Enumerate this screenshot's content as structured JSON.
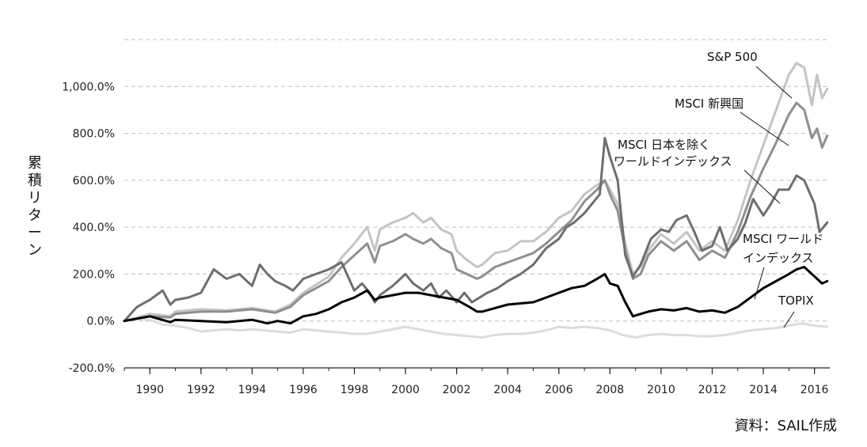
{
  "chart_data": {
    "type": "line",
    "title": "",
    "ylabel": "累積リターン",
    "xlabel": "",
    "source": "資料：SAIL作成",
    "ylim": [
      -200,
      1200
    ],
    "xlim": [
      1989,
      2016.6
    ],
    "grid": "horizontal dashed",
    "y_ticks": [
      -200,
      0,
      200,
      400,
      600,
      800,
      1000
    ],
    "y_tick_labels": [
      "-200.0%",
      "0.0%",
      "200.0%",
      "400.0%",
      "600.0%",
      "800.0%",
      "1,000.0%"
    ],
    "x_ticks": [
      1990,
      1992,
      1994,
      1996,
      1998,
      2000,
      2002,
      2004,
      2006,
      2008,
      2010,
      2012,
      2014,
      2016
    ],
    "x_tick_labels": [
      "1990",
      "1992",
      "1994",
      "1996",
      "1998",
      "2000",
      "2002",
      "2004",
      "2006",
      "2008",
      "2010",
      "2012",
      "2014",
      "2016"
    ],
    "series": [
      {
        "name": "S&P 500",
        "color": "#c4c4c4",
        "x": [
          1989,
          1990,
          1990.8,
          1991,
          1992,
          1993,
          1994,
          1994.9,
          1995.5,
          1996,
          1997,
          1997.5,
          1998,
          1998.5,
          1998.8,
          1999,
          1999.5,
          2000,
          2000.3,
          2000.7,
          2001,
          2001.4,
          2001.8,
          2002,
          2002.4,
          2002.8,
          2003,
          2003.5,
          2004,
          2004.5,
          2005,
          2005.5,
          2006,
          2006.5,
          2007,
          2007.5,
          2007.8,
          2008,
          2008.3,
          2008.6,
          2008.9,
          2009.2,
          2009.5,
          2010,
          2010.5,
          2011,
          2011.5,
          2012,
          2012.5,
          2013,
          2013.5,
          2014,
          2014.5,
          2015,
          2015.3,
          2015.6,
          2015.9,
          2016.1,
          2016.3,
          2016.5
        ],
        "y": [
          0,
          30,
          20,
          40,
          50,
          45,
          55,
          40,
          70,
          120,
          190,
          270,
          330,
          400,
          300,
          390,
          420,
          440,
          460,
          420,
          440,
          390,
          370,
          300,
          260,
          230,
          240,
          290,
          300,
          340,
          340,
          380,
          440,
          470,
          540,
          580,
          600,
          560,
          500,
          330,
          200,
          230,
          300,
          370,
          330,
          380,
          300,
          340,
          300,
          430,
          600,
          750,
          900,
          1050,
          1100,
          1080,
          920,
          1050,
          950,
          990
        ]
      },
      {
        "name": "MSCI 新興国",
        "color": "#8f8f8f",
        "x": [
          1989,
          1990,
          1990.8,
          1991,
          1992,
          1993,
          1994,
          1994.9,
          1995.5,
          1996,
          1997,
          1997.5,
          1998,
          1998.5,
          1998.8,
          1999,
          1999.5,
          2000,
          2000.3,
          2000.7,
          2001,
          2001.4,
          2001.8,
          2002,
          2002.4,
          2002.8,
          2003,
          2003.5,
          2004,
          2004.5,
          2005,
          2005.5,
          2006,
          2006.5,
          2007,
          2007.5,
          2007.8,
          2008,
          2008.3,
          2008.6,
          2008.9,
          2009.2,
          2009.5,
          2010,
          2010.5,
          2011,
          2011.5,
          2012,
          2012.5,
          2013,
          2013.5,
          2014,
          2014.5,
          2015,
          2015.3,
          2015.6,
          2015.9,
          2016.1,
          2016.3,
          2016.5
        ],
        "y": [
          0,
          20,
          15,
          30,
          40,
          40,
          50,
          35,
          60,
          110,
          170,
          230,
          280,
          330,
          250,
          320,
          340,
          370,
          350,
          330,
          350,
          310,
          290,
          220,
          200,
          180,
          190,
          230,
          250,
          270,
          290,
          330,
          380,
          430,
          510,
          560,
          600,
          540,
          470,
          300,
          180,
          200,
          280,
          340,
          300,
          340,
          260,
          300,
          270,
          380,
          530,
          650,
          760,
          880,
          930,
          900,
          780,
          820,
          740,
          790
        ]
      },
      {
        "name": "MSCI 日本を除くワールドインデックス",
        "color": "#6e6e6e",
        "x": [
          1989,
          1989.5,
          1990,
          1990.5,
          1990.8,
          1991,
          1991.5,
          1992,
          1992.5,
          1993,
          1993.5,
          1994,
          1994.3,
          1994.6,
          1994.9,
          1995.3,
          1995.6,
          1996,
          1996.5,
          1997,
          1997.5,
          1998,
          1998.3,
          1998.6,
          1998.8,
          1999,
          1999.5,
          2000,
          2000.3,
          2000.7,
          2001,
          2001.3,
          2001.6,
          2002,
          2002.3,
          2002.6,
          2002.9,
          2003.2,
          2003.6,
          2004,
          2004.5,
          2005,
          2005.5,
          2006,
          2006.3,
          2006.6,
          2007,
          2007.3,
          2007.6,
          2007.8,
          2008,
          2008.3,
          2008.6,
          2008.9,
          2009.2,
          2009.6,
          2010,
          2010.3,
          2010.6,
          2011,
          2011.3,
          2011.6,
          2012,
          2012.3,
          2012.6,
          2013,
          2013.3,
          2013.6,
          2014,
          2014.3,
          2014.6,
          2015,
          2015.3,
          2015.6,
          2016,
          2016.2,
          2016.5
        ],
        "y": [
          0,
          60,
          90,
          130,
          70,
          90,
          100,
          120,
          220,
          180,
          200,
          150,
          240,
          200,
          170,
          150,
          130,
          180,
          200,
          220,
          250,
          130,
          160,
          120,
          80,
          110,
          150,
          200,
          160,
          130,
          160,
          100,
          130,
          80,
          120,
          80,
          100,
          120,
          140,
          170,
          200,
          240,
          310,
          350,
          400,
          420,
          460,
          500,
          540,
          780,
          700,
          600,
          280,
          190,
          240,
          350,
          390,
          380,
          430,
          450,
          380,
          300,
          320,
          400,
          300,
          350,
          420,
          520,
          450,
          500,
          560,
          560,
          620,
          600,
          500,
          380,
          420
        ]
      },
      {
        "name": "MSCI ワールドインデックス",
        "color": "#000000",
        "x": [
          1989,
          1990,
          1990.8,
          1991,
          1992,
          1993,
          1994,
          1994.6,
          1995,
          1995.5,
          1996,
          1996.5,
          1997,
          1997.5,
          1998,
          1998.5,
          1998.8,
          1999,
          1999.5,
          2000,
          2000.5,
          2001,
          2001.5,
          2002,
          2002.5,
          2002.8,
          2003,
          2003.5,
          2004,
          2004.5,
          2005,
          2005.5,
          2006,
          2006.5,
          2007,
          2007.5,
          2007.8,
          2008,
          2008.3,
          2008.6,
          2008.9,
          2009.2,
          2009.5,
          2010,
          2010.5,
          2011,
          2011.5,
          2012,
          2012.5,
          2013,
          2013.5,
          2014,
          2014.5,
          2015,
          2015.3,
          2015.6,
          2015.9,
          2016.1,
          2016.3,
          2016.5
        ],
        "y": [
          0,
          20,
          -5,
          5,
          0,
          -5,
          5,
          -10,
          0,
          -10,
          20,
          30,
          50,
          80,
          100,
          130,
          90,
          100,
          110,
          120,
          120,
          110,
          100,
          90,
          60,
          40,
          40,
          55,
          70,
          75,
          80,
          100,
          120,
          140,
          150,
          180,
          200,
          160,
          150,
          80,
          20,
          30,
          40,
          50,
          45,
          55,
          40,
          45,
          35,
          60,
          100,
          140,
          170,
          200,
          220,
          230,
          200,
          180,
          160,
          170
        ]
      },
      {
        "name": "TOPIX",
        "color": "#dcdcdc",
        "x": [
          1989,
          1989.5,
          1990,
          1990.5,
          1991,
          1991.5,
          1992,
          1992.5,
          1993,
          1993.5,
          1994,
          1994.5,
          1995,
          1995.5,
          1996,
          1996.5,
          1997,
          1997.5,
          1998,
          1998.5,
          1999,
          1999.5,
          2000,
          2000.5,
          2001,
          2001.5,
          2002,
          2002.5,
          2003,
          2003.5,
          2004,
          2004.5,
          2005,
          2005.5,
          2006,
          2006.5,
          2007,
          2007.5,
          2008,
          2008.5,
          2009,
          2009.5,
          2010,
          2010.5,
          2011,
          2011.5,
          2012,
          2012.5,
          2013,
          2013.5,
          2014,
          2014.5,
          2015,
          2015.5,
          2016,
          2016.5
        ],
        "y": [
          0,
          10,
          5,
          -15,
          -20,
          -30,
          -45,
          -40,
          -35,
          -40,
          -35,
          -40,
          -45,
          -50,
          -35,
          -40,
          -45,
          -50,
          -55,
          -55,
          -45,
          -35,
          -25,
          -35,
          -45,
          -55,
          -60,
          -65,
          -70,
          -60,
          -55,
          -55,
          -50,
          -40,
          -25,
          -30,
          -25,
          -30,
          -40,
          -60,
          -70,
          -60,
          -55,
          -60,
          -60,
          -65,
          -65,
          -60,
          -50,
          -40,
          -35,
          -30,
          -20,
          -10,
          -20,
          -25
        ]
      }
    ],
    "annotations": [
      {
        "text": "S&P 500",
        "series": "S&P 500"
      },
      {
        "text": "MSCI 新興国",
        "series": "MSCI 新興国"
      },
      {
        "text": "MSCI 日本を除く",
        "series": "MSCI 日本を除くワールドインデックス"
      },
      {
        "text": "ワールドインデックス",
        "series": "MSCI 日本を除くワールドインデックス"
      },
      {
        "text": "MSCI ワールド",
        "series": "MSCI ワールドインデックス"
      },
      {
        "text": "インデックス",
        "series": "MSCI ワールドインデックス"
      },
      {
        "text": "TOPIX",
        "series": "TOPIX"
      }
    ]
  }
}
